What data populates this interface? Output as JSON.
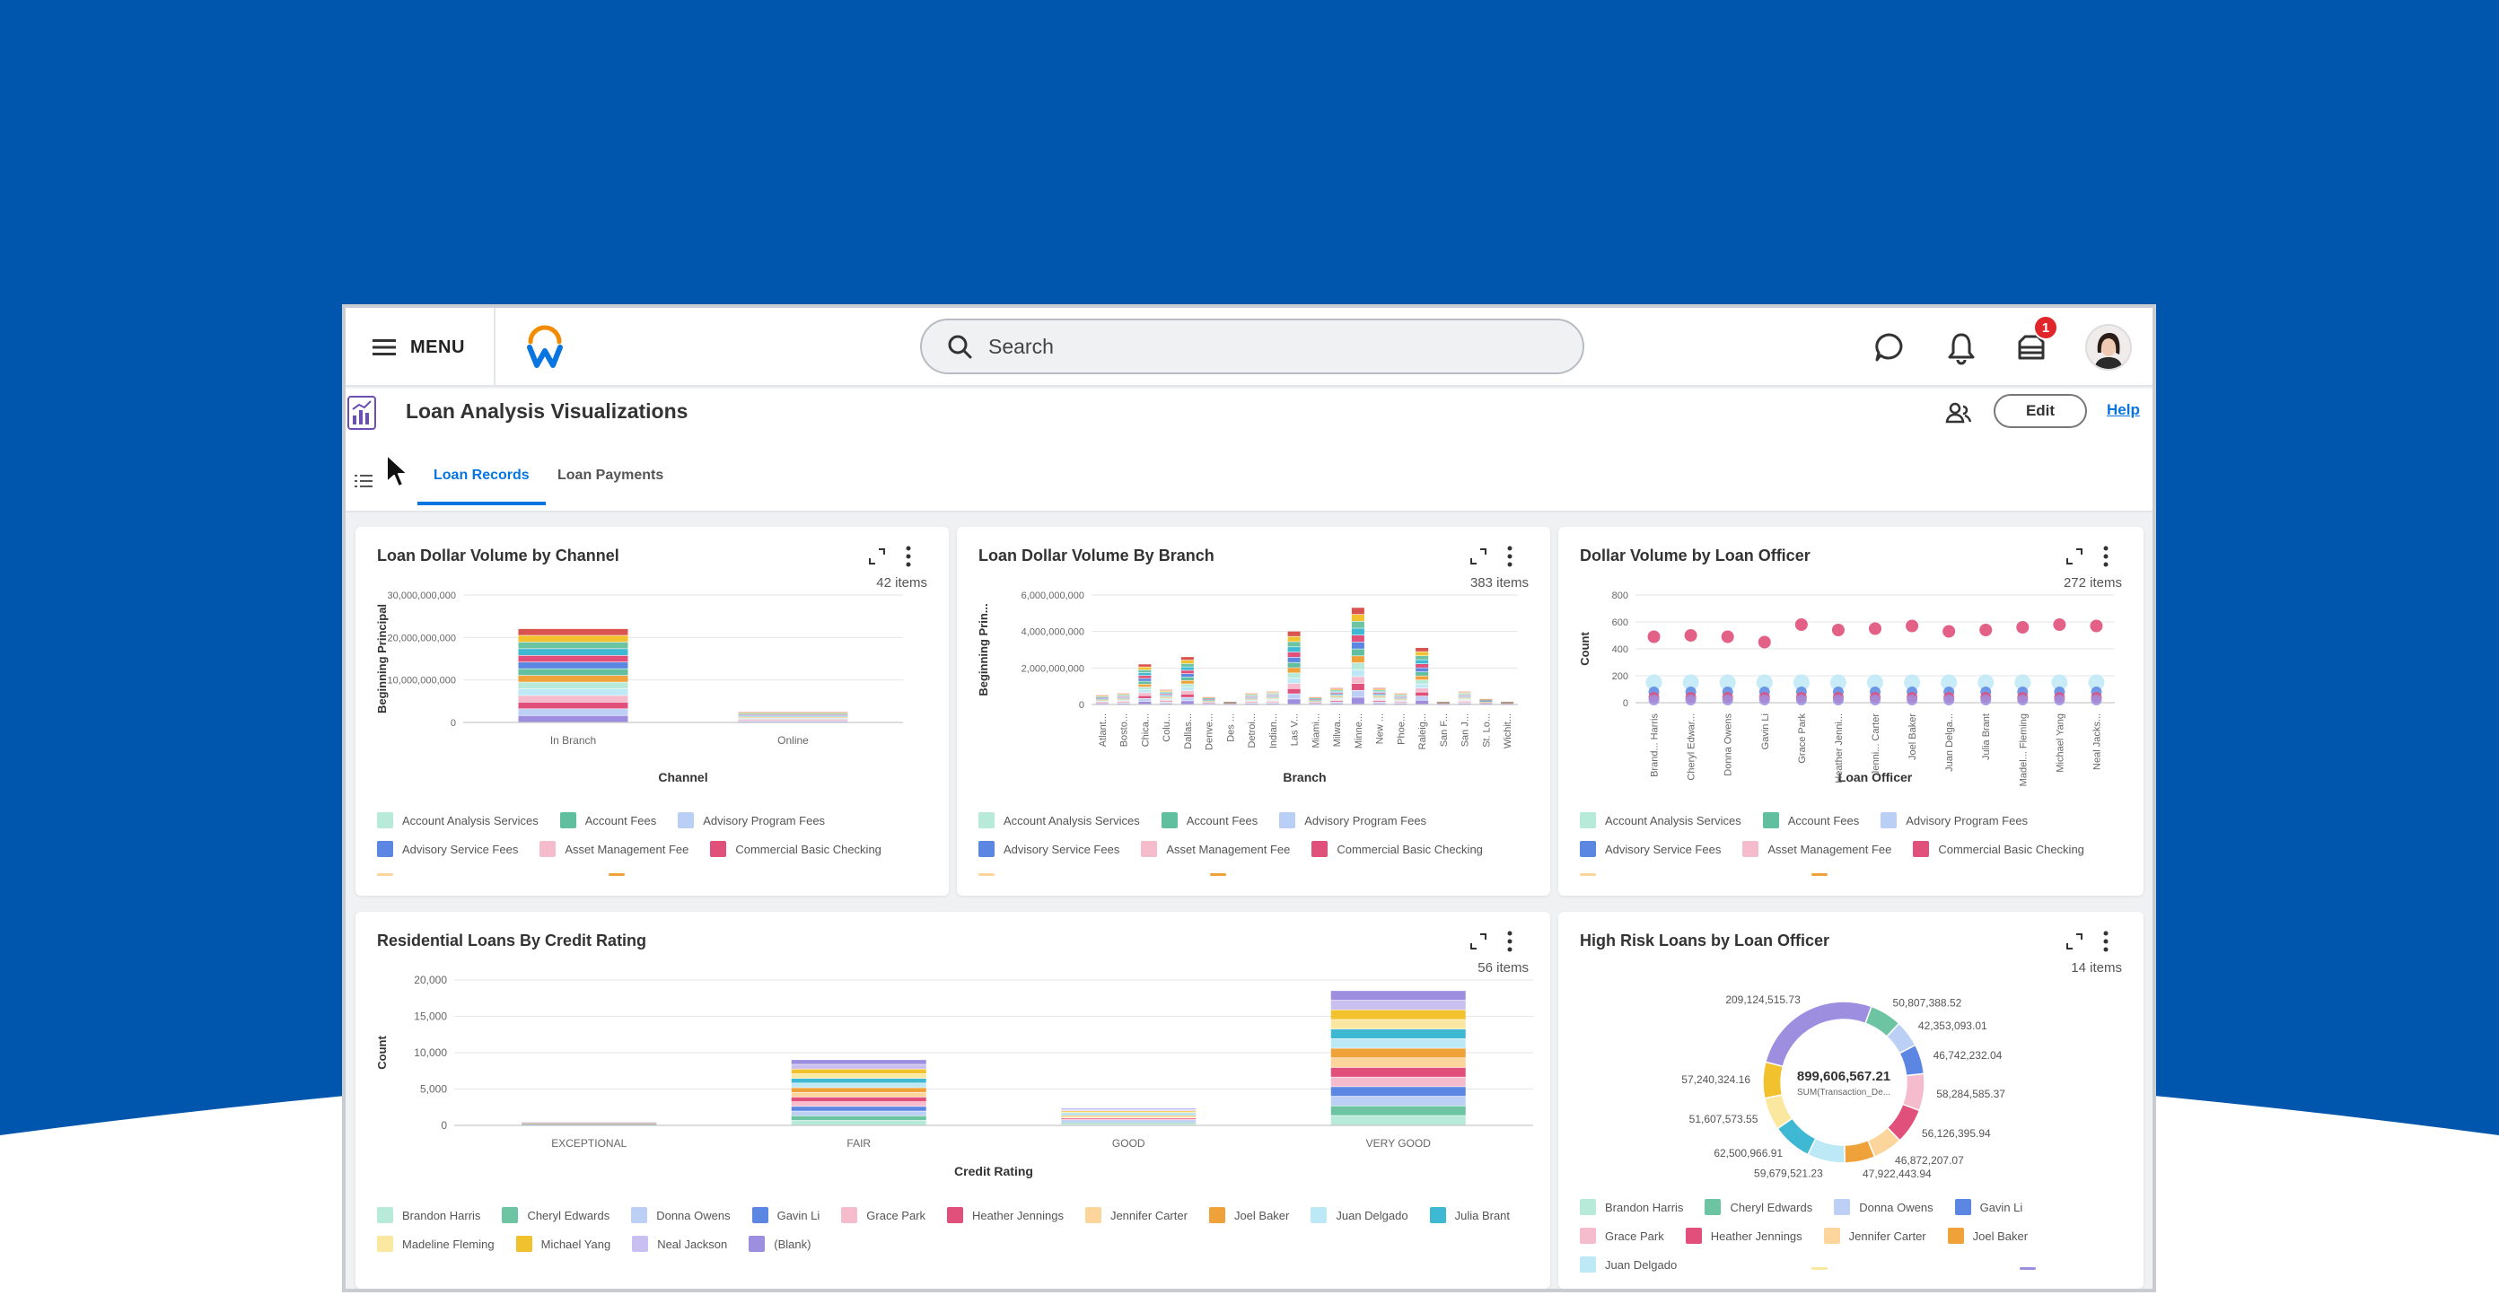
{
  "app": {
    "menu_label": "MENU",
    "search_placeholder": "Search",
    "notification_count": "1",
    "page_title": "Loan Analysis Visualizations",
    "edit_label": "Edit",
    "help_label": "Help",
    "tabs": [
      {
        "label": "Loan Records",
        "active": true
      },
      {
        "label": "Loan Payments",
        "active": false
      }
    ],
    "brand_color": "#0055ad",
    "accent_color": "#0875e1"
  },
  "palette": {
    "Account Analysis Services": "#b7ead8",
    "Account Fees": "#5fbf9f",
    "Advisory Program Fees": "#b9cff5",
    "Advisory Service Fees": "#5b87e2",
    "Asset Management Fee": "#f4bccd",
    "Commercial Basic Checking": "#e0507a",
    "Brandon Harris": "#b7ead8",
    "Cheryl Edwards": "#6cc4a2",
    "Donna Owens": "#bcd0f5",
    "Gavin Li": "#5b87e2",
    "Grace Park": "#f4bccd",
    "Heather Jennings": "#e0507a",
    "Jennifer Carter": "#fbd59c",
    "Joel Baker": "#f0a23a",
    "Juan Delgado": "#bde8f6",
    "Julia Brant": "#3fb8d3",
    "Madeline Fleming": "#fae7a0",
    "Michael Yang": "#f2c12e",
    "Neal Jackson": "#c9bff0",
    "(Blank)": "#9d8ee0"
  },
  "cards": {
    "channel": {
      "title": "Loan Dollar Volume by Channel",
      "count": "42 items",
      "chart_data": {
        "type": "bar",
        "stacked": true,
        "xlabel": "Channel",
        "ylabel": "Beginning Principal",
        "categories": [
          "In Branch",
          "Online"
        ],
        "yticks": [
          "30,000,000,000",
          "20,000,000,000",
          "10,000,000,000",
          "0"
        ],
        "ylim": [
          0,
          30000000000
        ],
        "totals": [
          22000000000,
          2500000000
        ]
      },
      "legend": [
        "Account Analysis Services",
        "Account Fees",
        "Advisory Program Fees",
        "Advisory Service Fees",
        "Asset Management Fee",
        "Commercial Basic Checking"
      ]
    },
    "branch": {
      "title": "Loan Dollar Volume By Branch",
      "count": "383 items",
      "chart_data": {
        "type": "bar",
        "stacked": true,
        "xlabel": "Branch",
        "ylabel": "Beginning Prin...",
        "categories": [
          "Atlant...",
          "Bosto...",
          "Chica...",
          "Colu...",
          "Dallas...",
          "Denve...",
          "Des ...",
          "Detroi...",
          "Indian...",
          "Las V...",
          "Miami...",
          "Milwa...",
          "Minne...",
          "New ...",
          "Phoe...",
          "Raleig...",
          "San F...",
          "San J...",
          "St. Lo...",
          "Wichit..."
        ],
        "yticks": [
          "6,000,000,000",
          "4,000,000,000",
          "2,000,000,000",
          "0"
        ],
        "ylim": [
          0,
          6000000000
        ],
        "totals": [
          500000000,
          600000000,
          2200000000,
          800000000,
          2600000000,
          400000000,
          150000000,
          600000000,
          700000000,
          4000000000,
          400000000,
          900000000,
          5300000000,
          900000000,
          600000000,
          3100000000,
          150000000,
          700000000,
          300000000,
          150000000
        ]
      },
      "legend": [
        "Account Analysis Services",
        "Account Fees",
        "Advisory Program Fees",
        "Advisory Service Fees",
        "Asset Management Fee",
        "Commercial Basic Checking"
      ]
    },
    "officer": {
      "title": "Dollar Volume by Loan Officer",
      "count": "272 items",
      "chart_data": {
        "type": "scatter",
        "xlabel": "Loan Officer",
        "ylabel": "Count",
        "categories": [
          "Brand... Harris",
          "Cheryl Edwar...",
          "Donna Owens",
          "Gavin Li",
          "Grace Park",
          "Heather Jenni...",
          "Jenni... Carter",
          "Joel Baker",
          "Juan Delga...",
          "Julia Brant",
          "Madel... Fleming",
          "Michael Yang",
          "Neal Jacks..."
        ],
        "yticks": [
          "800",
          "600",
          "400",
          "200",
          "0"
        ],
        "ylim": [
          0,
          800
        ],
        "top_values": [
          490,
          500,
          490,
          450,
          580,
          540,
          550,
          570,
          530,
          540,
          560,
          580,
          570
        ],
        "cluster_values": [
          150,
          80,
          40,
          20
        ]
      },
      "legend": [
        "Account Analysis Services",
        "Account Fees",
        "Advisory Program Fees",
        "Advisory Service Fees",
        "Asset Management Fee",
        "Commercial Basic Checking"
      ]
    },
    "credit": {
      "title": "Residential Loans By Credit Rating",
      "count": "56 items",
      "chart_data": {
        "type": "bar",
        "stacked": true,
        "xlabel": "Credit Rating",
        "ylabel": "Count",
        "categories": [
          "EXCEPTIONAL",
          "FAIR",
          "GOOD",
          "VERY GOOD"
        ],
        "yticks": [
          "20,000",
          "15,000",
          "10,000",
          "5,000",
          "0"
        ],
        "ylim": [
          0,
          20000
        ],
        "totals": [
          400,
          9000,
          2300,
          18500
        ]
      },
      "legend": [
        "Brandon Harris",
        "Cheryl Edwards",
        "Donna Owens",
        "Gavin Li",
        "Grace Park",
        "Heather Jennings",
        "Jennifer Carter",
        "Joel Baker",
        "Juan Delgado",
        "Julia Brant",
        "Madeline Fleming",
        "Michael Yang",
        "Neal Jackson",
        "(Blank)"
      ]
    },
    "highrisk": {
      "title": "High Risk Loans by Loan Officer",
      "count": "14 items",
      "chart_data": {
        "type": "pie",
        "donut": true,
        "center_value": "899,606,567.21",
        "center_label": "SUM(Transaction_De...",
        "slices": [
          {
            "label": "50,807,388.52",
            "value": 50807388.52,
            "color": "#6cc4a2"
          },
          {
            "label": "42,353,093.01",
            "value": 42353093.01,
            "color": "#bcd0f5"
          },
          {
            "label": "46,742,232.04",
            "value": 46742232.04,
            "color": "#5b87e2"
          },
          {
            "label": "58,284,585.37",
            "value": 58284585.37,
            "color": "#f4bccd"
          },
          {
            "label": "56,126,395.94",
            "value": 56126395.94,
            "color": "#e0507a"
          },
          {
            "label": "46,872,207.07",
            "value": 46872207.07,
            "color": "#fbd59c"
          },
          {
            "label": "47,922,443.94",
            "value": 47922443.94,
            "color": "#f0a23a"
          },
          {
            "label": "59,679,521.23",
            "value": 59679521.23,
            "color": "#bde8f6"
          },
          {
            "label": "62,500,966.91",
            "value": 62500966.91,
            "color": "#3fb8d3"
          },
          {
            "label": "51,607,573.55",
            "value": 51607573.55,
            "color": "#fae7a0"
          },
          {
            "label": "57,240,324.16",
            "value": 57240324.16,
            "color": "#f2c12e"
          },
          {
            "label": "209,124,515.73",
            "value": 209124515.73,
            "color": "#9d8ee0"
          }
        ]
      },
      "legend": [
        "Brandon Harris",
        "Cheryl Edwards",
        "Donna Owens",
        "Gavin Li",
        "Grace Park",
        "Heather Jennings",
        "Jennifer Carter",
        "Joel Baker",
        "Juan Delgado"
      ]
    }
  }
}
